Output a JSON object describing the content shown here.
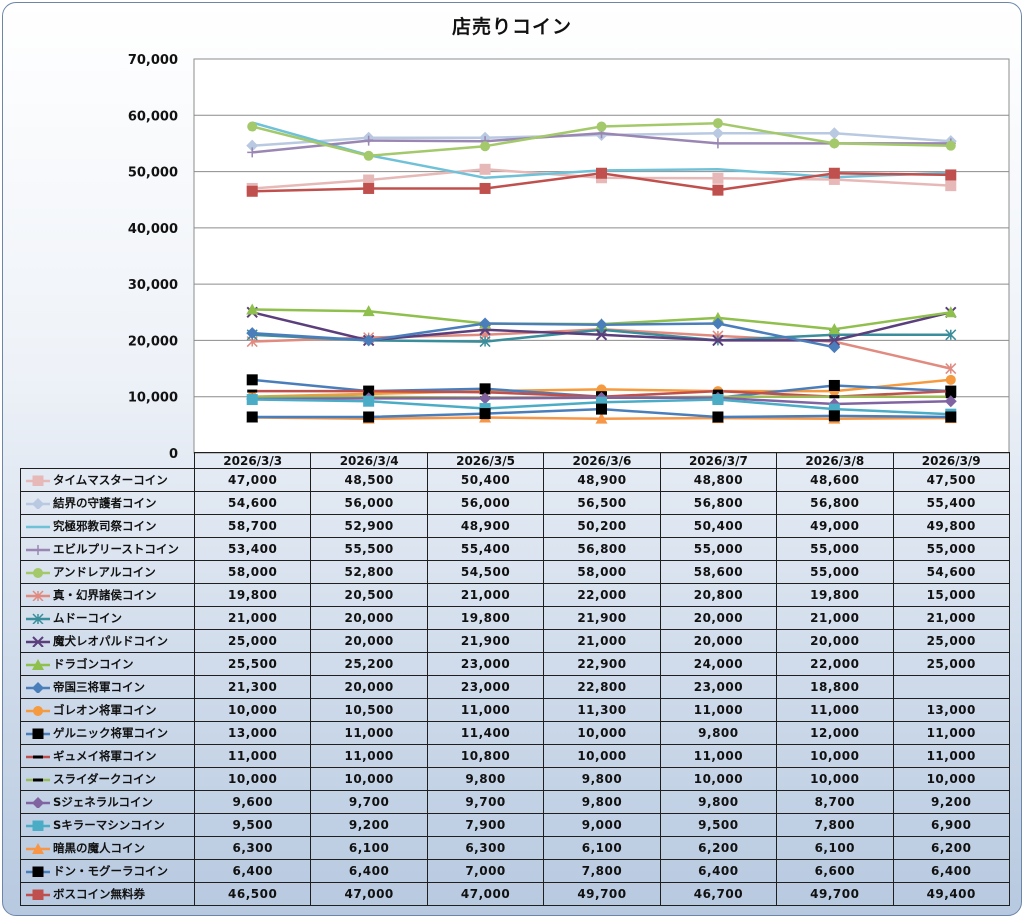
{
  "chart_data": {
    "type": "line",
    "title": "店売りコイン",
    "xlabel": "",
    "ylabel": "",
    "ylim": [
      0,
      70000
    ],
    "yticks": [
      "0",
      "10,000",
      "20,000",
      "30,000",
      "40,000",
      "50,000",
      "60,000",
      "70,000"
    ],
    "categories": [
      "2026/3/3",
      "2026/3/4",
      "2026/3/5",
      "2026/3/6",
      "2026/3/7",
      "2026/3/8",
      "2026/3/9"
    ],
    "legend_position": "data-table",
    "grid": true,
    "series": [
      {
        "name": "タイムマスターコイン",
        "color": "#e6b9b8",
        "marker": "square",
        "values": [
          47000,
          48500,
          50400,
          48900,
          48800,
          48600,
          47500
        ],
        "labels": [
          "47,000",
          "48,500",
          "50,400",
          "48,900",
          "48,800",
          "48,600",
          "47,500"
        ]
      },
      {
        "name": "結界の守護者コイン",
        "color": "#b9c9e1",
        "marker": "diamond",
        "values": [
          54600,
          56000,
          56000,
          56500,
          56800,
          56800,
          55400
        ],
        "labels": [
          "54,600",
          "56,000",
          "56,000",
          "56,500",
          "56,800",
          "56,800",
          "55,400"
        ]
      },
      {
        "name": "究極邪教司祭コイン",
        "color": "#6fc1d8",
        "marker": "none",
        "values": [
          58700,
          52900,
          48900,
          50200,
          50400,
          49000,
          49800
        ],
        "labels": [
          "58,700",
          "52,900",
          "48,900",
          "50,200",
          "50,400",
          "49,000",
          "49,800"
        ]
      },
      {
        "name": "エビルプリーストコイン",
        "color": "#9a86b3",
        "marker": "plus",
        "values": [
          53400,
          55500,
          55400,
          56800,
          55000,
          55000,
          55000
        ],
        "labels": [
          "53,400",
          "55,500",
          "55,400",
          "56,800",
          "55,000",
          "55,000",
          "55,000"
        ]
      },
      {
        "name": "アンドレアルコイン",
        "color": "#a3c96b",
        "marker": "circle",
        "values": [
          58000,
          52800,
          54500,
          58000,
          58600,
          55000,
          54600
        ],
        "labels": [
          "58,000",
          "52,800",
          "54,500",
          "58,000",
          "58,600",
          "55,000",
          "54,600"
        ]
      },
      {
        "name": "真・幻界諸侯コイン",
        "color": "#e08a80",
        "marker": "asterisk",
        "values": [
          19800,
          20500,
          21000,
          22000,
          20800,
          19800,
          15000
        ],
        "labels": [
          "19,800",
          "20,500",
          "21,000",
          "22,000",
          "20,800",
          "19,800",
          "15,000"
        ]
      },
      {
        "name": "ムドーコイン",
        "color": "#3a8d9a",
        "marker": "asterisk",
        "values": [
          21000,
          20000,
          19800,
          21900,
          20000,
          21000,
          21000
        ],
        "labels": [
          "21,000",
          "20,000",
          "19,800",
          "21,900",
          "20,000",
          "21,000",
          "21,000"
        ]
      },
      {
        "name": "魔犬レオパルドコイン",
        "color": "#5b3e7c",
        "marker": "x",
        "values": [
          25000,
          20000,
          21900,
          21000,
          20000,
          20000,
          25000
        ],
        "labels": [
          "25,000",
          "20,000",
          "21,900",
          "21,000",
          "20,000",
          "20,000",
          "25,000"
        ]
      },
      {
        "name": "ドラゴンコイン",
        "color": "#8fbf4c",
        "marker": "triangle",
        "values": [
          25500,
          25200,
          23000,
          22900,
          24000,
          22000,
          25000
        ],
        "labels": [
          "25,500",
          "25,200",
          "23,000",
          "22,900",
          "24,000",
          "22,000",
          "25,000"
        ]
      },
      {
        "name": "帝国三将軍コイン",
        "color": "#4a7ebb",
        "marker": "diamond",
        "values": [
          21300,
          20000,
          23000,
          22800,
          23000,
          18800,
          null
        ],
        "labels": [
          "21,300",
          "20,000",
          "23,000",
          "22,800",
          "23,000",
          "18,800",
          ""
        ]
      },
      {
        "name": "ゴレオン将軍コイン",
        "color": "#f59a3e",
        "marker": "circle",
        "values": [
          10000,
          10500,
          11000,
          11300,
          11000,
          11000,
          13000
        ],
        "labels": [
          "10,000",
          "10,500",
          "11,000",
          "11,300",
          "11,000",
          "11,000",
          "13,000"
        ]
      },
      {
        "name": "ゲルニック将軍コイン",
        "color": "#4a7ebb",
        "marker": "blacksquare",
        "values": [
          13000,
          11000,
          11400,
          10000,
          9800,
          12000,
          11000
        ],
        "labels": [
          "13,000",
          "11,000",
          "11,400",
          "10,000",
          "9,800",
          "12,000",
          "11,000"
        ]
      },
      {
        "name": "ギュメイ将軍コイン",
        "color": "#c0504d",
        "marker": "dash",
        "values": [
          11000,
          11000,
          10800,
          10000,
          11000,
          10000,
          11000
        ],
        "labels": [
          "11,000",
          "11,000",
          "10,800",
          "10,000",
          "11,000",
          "10,000",
          "11,000"
        ]
      },
      {
        "name": "スライダークコイン",
        "color": "#9bbb59",
        "marker": "dash",
        "values": [
          10000,
          10000,
          9800,
          9800,
          10000,
          10000,
          10000
        ],
        "labels": [
          "10,000",
          "10,000",
          "9,800",
          "9,800",
          "10,000",
          "10,000",
          "10,000"
        ]
      },
      {
        "name": "Sジェネラルコイン",
        "color": "#8064a2",
        "marker": "diamond",
        "values": [
          9600,
          9700,
          9700,
          9800,
          9800,
          8700,
          9200
        ],
        "labels": [
          "9,600",
          "9,700",
          "9,700",
          "9,800",
          "9,800",
          "8,700",
          "9,200"
        ]
      },
      {
        "name": "Sキラーマシンコイン",
        "color": "#4bacc6",
        "marker": "square",
        "values": [
          9500,
          9200,
          7900,
          9000,
          9500,
          7800,
          6900
        ],
        "labels": [
          "9,500",
          "9,200",
          "7,900",
          "9,000",
          "9,500",
          "7,800",
          "6,900"
        ]
      },
      {
        "name": "暗黒の魔人コイン",
        "color": "#f79646",
        "marker": "triangle",
        "values": [
          6300,
          6100,
          6300,
          6100,
          6200,
          6100,
          6200
        ],
        "labels": [
          "6,300",
          "6,100",
          "6,300",
          "6,100",
          "6,200",
          "6,100",
          "6,200"
        ]
      },
      {
        "name": "ドン・モグーラコイン",
        "color": "#4a7ebb",
        "marker": "blacksquare",
        "values": [
          6400,
          6400,
          7000,
          7800,
          6400,
          6600,
          6400
        ],
        "labels": [
          "6,400",
          "6,400",
          "7,000",
          "7,800",
          "6,400",
          "6,600",
          "6,400"
        ]
      },
      {
        "name": "ボスコイン無料券",
        "color": "#c0504d",
        "marker": "square",
        "values": [
          46500,
          47000,
          47000,
          49700,
          46700,
          49700,
          49400
        ],
        "labels": [
          "46,500",
          "47,000",
          "47,000",
          "49,700",
          "46,700",
          "49,700",
          "49,400"
        ]
      }
    ]
  }
}
